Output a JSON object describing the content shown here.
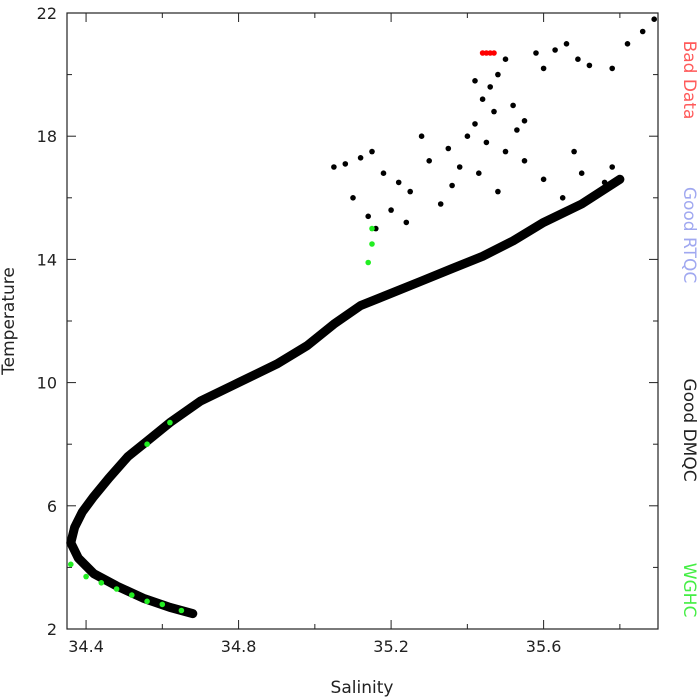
{
  "chart_data": {
    "type": "scatter",
    "title": "",
    "xlabel": "Salinity",
    "ylabel": "Temperature",
    "xlim": [
      34.35,
      35.9
    ],
    "ylim": [
      2,
      22
    ],
    "x_ticks": [
      34.4,
      34.8,
      35.2,
      35.6
    ],
    "x_tick_labels": [
      "34.4",
      "34.8",
      "35.2",
      "35.6"
    ],
    "x_minor_ticks": [
      34.6,
      35.0,
      35.4,
      35.8
    ],
    "y_ticks": [
      2,
      6,
      10,
      14,
      18,
      22
    ],
    "y_tick_labels": [
      "2",
      "6",
      "10",
      "14",
      "18",
      "22"
    ],
    "y_minor_ticks": [
      4,
      8,
      12,
      16,
      20
    ],
    "grid": false,
    "legend_position": "right side, vertical",
    "legend": [
      {
        "label": "Bad Data",
        "color": "#ff5a5a"
      },
      {
        "label": "Good RTQC",
        "color": "#a0a8f0"
      },
      {
        "label": "Good DMQC",
        "color": "#222222"
      },
      {
        "label": "WGHC",
        "color": "#44ee44"
      }
    ],
    "series": [
      {
        "name": "Good DMQC",
        "color": "#000000",
        "curve": [
          [
            34.68,
            2.5
          ],
          [
            34.62,
            2.7
          ],
          [
            34.55,
            3.0
          ],
          [
            34.48,
            3.4
          ],
          [
            34.42,
            3.8
          ],
          [
            34.38,
            4.3
          ],
          [
            34.36,
            4.8
          ],
          [
            34.37,
            5.3
          ],
          [
            34.39,
            5.8
          ],
          [
            34.42,
            6.3
          ],
          [
            34.46,
            6.9
          ],
          [
            34.51,
            7.6
          ],
          [
            34.56,
            8.1
          ],
          [
            34.62,
            8.7
          ],
          [
            34.7,
            9.4
          ],
          [
            34.8,
            10.0
          ],
          [
            34.9,
            10.6
          ],
          [
            34.98,
            11.2
          ],
          [
            35.05,
            11.9
          ],
          [
            35.12,
            12.5
          ],
          [
            35.2,
            12.9
          ],
          [
            35.28,
            13.3
          ],
          [
            35.36,
            13.7
          ],
          [
            35.44,
            14.1
          ],
          [
            35.52,
            14.6
          ],
          [
            35.6,
            15.2
          ],
          [
            35.7,
            15.8
          ],
          [
            35.8,
            16.6
          ]
        ],
        "points": [
          [
            35.05,
            17.0
          ],
          [
            35.08,
            17.1
          ],
          [
            35.12,
            17.3
          ],
          [
            35.15,
            17.5
          ],
          [
            35.18,
            16.8
          ],
          [
            35.22,
            16.5
          ],
          [
            35.25,
            16.2
          ],
          [
            35.3,
            17.2
          ],
          [
            35.33,
            15.8
          ],
          [
            35.36,
            16.4
          ],
          [
            35.4,
            18.0
          ],
          [
            35.42,
            18.4
          ],
          [
            35.44,
            19.2
          ],
          [
            35.46,
            19.6
          ],
          [
            35.48,
            20.0
          ],
          [
            35.5,
            20.5
          ],
          [
            35.52,
            19.0
          ],
          [
            35.55,
            18.5
          ],
          [
            35.58,
            20.7
          ],
          [
            35.6,
            20.2
          ],
          [
            35.63,
            20.8
          ],
          [
            35.66,
            21.0
          ],
          [
            35.69,
            20.5
          ],
          [
            35.72,
            20.3
          ],
          [
            35.78,
            20.2
          ],
          [
            35.82,
            21.0
          ],
          [
            35.86,
            21.4
          ],
          [
            35.89,
            21.8
          ],
          [
            35.35,
            17.6
          ],
          [
            35.38,
            17.0
          ],
          [
            35.28,
            18.0
          ],
          [
            35.45,
            17.8
          ],
          [
            35.5,
            17.5
          ],
          [
            35.55,
            17.2
          ],
          [
            35.6,
            16.6
          ],
          [
            35.65,
            16.0
          ],
          [
            35.68,
            17.5
          ],
          [
            35.7,
            16.8
          ],
          [
            35.78,
            17.0
          ],
          [
            35.76,
            16.5
          ],
          [
            35.14,
            15.4
          ],
          [
            35.16,
            15.0
          ],
          [
            35.1,
            16.0
          ],
          [
            35.2,
            15.6
          ],
          [
            35.24,
            15.2
          ],
          [
            35.42,
            19.8
          ],
          [
            35.47,
            18.8
          ],
          [
            35.53,
            18.2
          ],
          [
            35.43,
            16.8
          ],
          [
            35.48,
            16.2
          ]
        ]
      },
      {
        "name": "Bad Data",
        "color": "#ff0000",
        "points": [
          [
            35.44,
            20.7
          ],
          [
            35.45,
            20.7
          ],
          [
            35.46,
            20.7
          ],
          [
            35.47,
            20.7
          ]
        ]
      },
      {
        "name": "WGHC",
        "color": "#22ee22",
        "points": [
          [
            34.36,
            4.1
          ],
          [
            34.4,
            3.7
          ],
          [
            34.44,
            3.5
          ],
          [
            34.48,
            3.3
          ],
          [
            34.52,
            3.1
          ],
          [
            34.56,
            2.9
          ],
          [
            34.6,
            2.8
          ],
          [
            34.65,
            2.6
          ],
          [
            34.56,
            8.0
          ],
          [
            34.62,
            8.7
          ],
          [
            35.14,
            13.9
          ],
          [
            35.15,
            14.5
          ],
          [
            35.15,
            15.0
          ]
        ]
      }
    ]
  }
}
